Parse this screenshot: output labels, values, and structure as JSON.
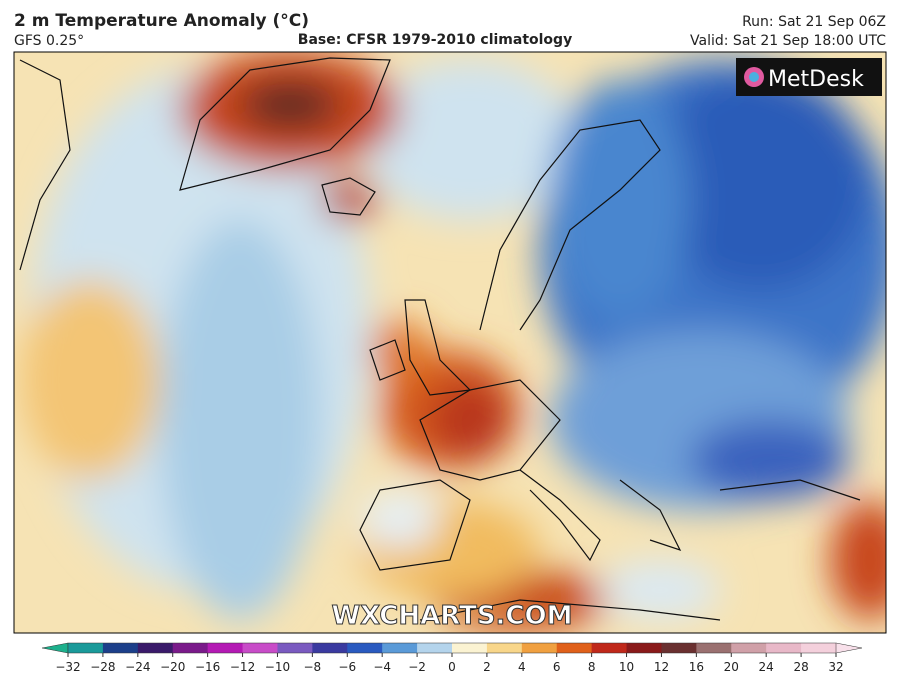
{
  "header": {
    "title": "2 m Temperature Anomaly (°C)",
    "model": "GFS 0.25°",
    "base": "Base: CFSR 1979-2010 climatology",
    "run": "Run: Sat 21 Sep 06Z",
    "valid": "Valid: Sat 21 Sep 18:00 UTC"
  },
  "map": {
    "logo": "MetDesk",
    "watermark": "WXCHARTS.COM"
  },
  "colorbar": {
    "ticks": [
      {
        "value": -32,
        "label": "−32"
      },
      {
        "value": -28,
        "label": "−28"
      },
      {
        "value": -24,
        "label": "−24"
      },
      {
        "value": -20,
        "label": "−20"
      },
      {
        "value": -16,
        "label": "−16"
      },
      {
        "value": -12,
        "label": "−12"
      },
      {
        "value": -10,
        "label": "−10"
      },
      {
        "value": -8,
        "label": "−8"
      },
      {
        "value": -6,
        "label": "−6"
      },
      {
        "value": -4,
        "label": "−4"
      },
      {
        "value": -2,
        "label": "−2"
      },
      0,
      2,
      4,
      6,
      8,
      10,
      12,
      16,
      20,
      24,
      28,
      32
    ],
    "colors": [
      "#1a9a9a",
      "#1c3f8a",
      "#3a1a6a",
      "#7a1a8a",
      "#b41ab4",
      "#c84cc8",
      "#7a5ac0",
      "#3a3aa0",
      "#2a5ac0",
      "#5a9ad8",
      "#b4d4ec",
      "#fbf3d2",
      "#f8d68a",
      "#f0a040",
      "#e0601a",
      "#c0281a",
      "#8a1a1a",
      "#6a3030",
      "#9a7070",
      "#d0a0a8",
      "#e8b8c8",
      "#f4d0dc"
    ],
    "under": "#1cb08c",
    "over": "#f8e0ea"
  }
}
